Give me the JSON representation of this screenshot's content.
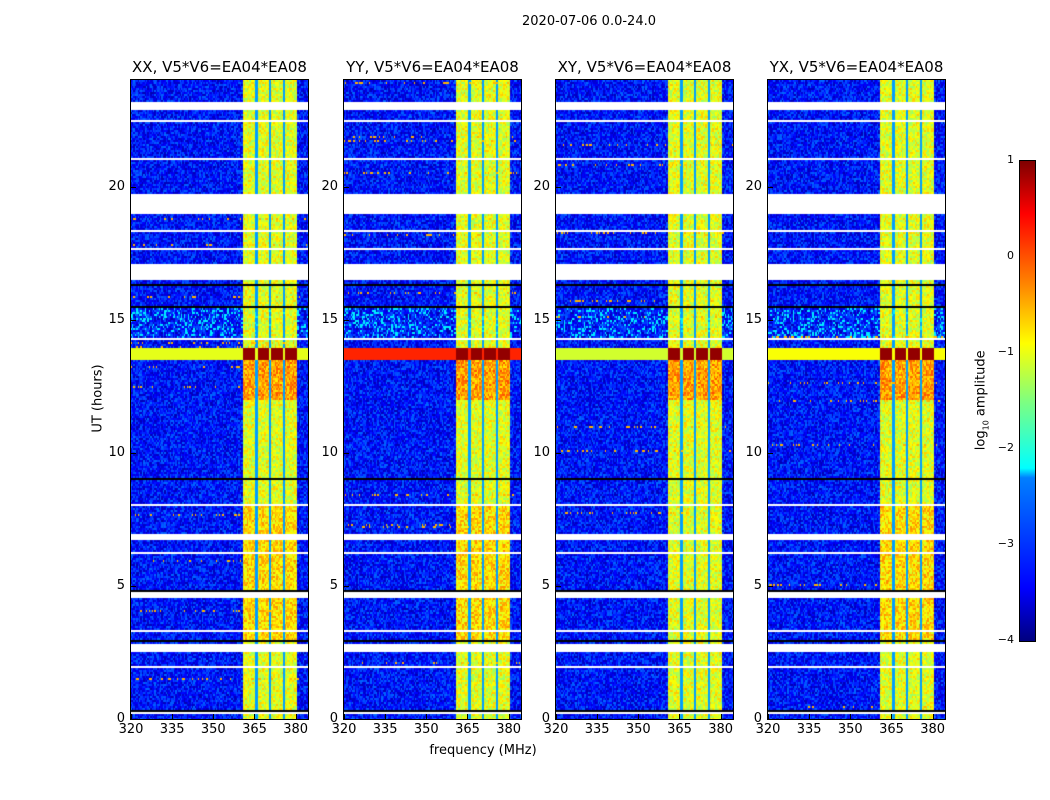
{
  "chart_data": {
    "type": "heatmap",
    "title": "2020-07-06 0.0-24.0",
    "xlabel": "frequency (MHz)",
    "ylabel": "UT (hours)",
    "xlim": [
      320,
      384.5
    ],
    "ylim": [
      0,
      24
    ],
    "xticks": [
      "320",
      "335",
      "350",
      "365",
      "380"
    ],
    "yticks": [
      "0",
      "5",
      "10",
      "15",
      "20"
    ],
    "panels": [
      {
        "title": "XX, V5*V6=EA04*EA08",
        "rfi_row_level": 0.2
      },
      {
        "title": "YY, V5*V6=EA04*EA08",
        "rfi_row_level": 0.5
      },
      {
        "title": "XY, V5*V6=EA04*EA08",
        "rfi_row_level": 0.1
      },
      {
        "title": "YX, V5*V6=EA04*EA08",
        "rfi_row_level": 0.3
      }
    ],
    "background_log10_amp": -3.3,
    "bright_band_mhz": [
      361,
      380.5
    ],
    "bright_band_log10_amp": -1.0,
    "band_gaps_mhz": [
      366,
      370.8,
      375.8
    ],
    "strong_rfi_hours": [
      13.5,
      13.9
    ],
    "flagged_hours": [
      [
        22.9,
        23.2
      ],
      [
        22.4,
        22.5
      ],
      [
        21.0,
        21.1
      ],
      [
        19.0,
        19.7
      ],
      [
        18.3,
        18.4
      ],
      [
        17.6,
        17.7
      ],
      [
        16.5,
        17.1
      ],
      [
        14.2,
        14.3
      ],
      [
        12.4,
        12.45
      ],
      [
        8.0,
        8.05
      ],
      [
        6.7,
        6.95
      ],
      [
        6.2,
        6.25
      ],
      [
        4.55,
        4.75
      ],
      [
        3.3,
        3.35
      ],
      [
        2.5,
        2.8
      ],
      [
        1.95,
        2.0
      ],
      [
        0.2,
        0.25
      ]
    ],
    "dark_rows_hours": [
      21.3,
      16.3,
      15.5,
      10.7,
      9.0,
      7.1,
      6.5,
      4.8,
      2.9,
      0.3
    ],
    "colorbar": {
      "label": "log10 amplitude",
      "label_base": "log",
      "label_sub": "10",
      "label_rest": " amplitude",
      "range": [
        -4,
        1
      ],
      "ticks": [
        "1",
        "0",
        "−1",
        "−2",
        "−3",
        "−4"
      ],
      "colormap": "jet"
    }
  }
}
